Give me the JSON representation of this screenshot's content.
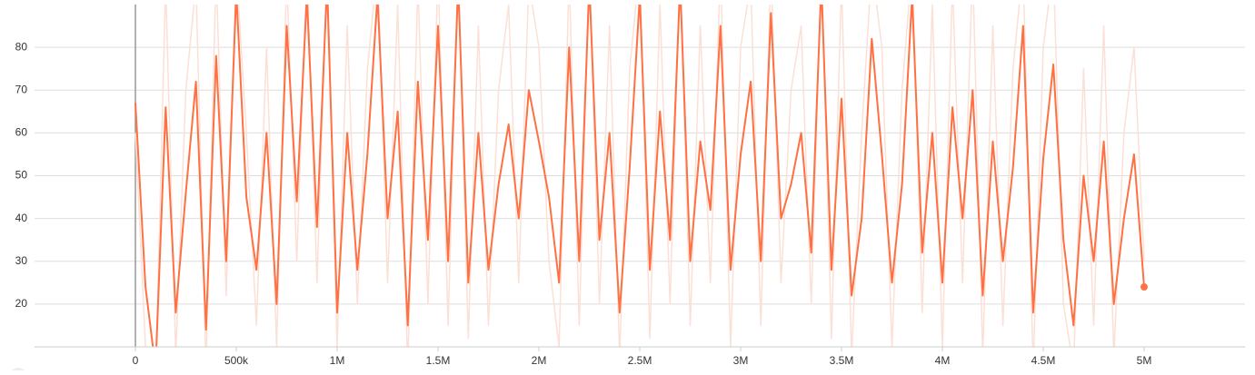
{
  "chart_data": {
    "type": "line",
    "x": [
      0,
      50000,
      100000,
      150000,
      200000,
      250000,
      300000,
      350000,
      400000,
      450000,
      500000,
      550000,
      600000,
      650000,
      700000,
      750000,
      800000,
      850000,
      900000,
      950000,
      1000000,
      1050000,
      1100000,
      1150000,
      1200000,
      1250000,
      1300000,
      1350000,
      1400000,
      1450000,
      1500000,
      1550000,
      1600000,
      1650000,
      1700000,
      1750000,
      1800000,
      1850000,
      1900000,
      1950000,
      2000000,
      2050000,
      2100000,
      2150000,
      2200000,
      2250000,
      2300000,
      2350000,
      2400000,
      2450000,
      2500000,
      2550000,
      2600000,
      2650000,
      2700000,
      2750000,
      2800000,
      2850000,
      2900000,
      2950000,
      3000000,
      3050000,
      3100000,
      3150000,
      3200000,
      3250000,
      3300000,
      3350000,
      3400000,
      3450000,
      3500000,
      3550000,
      3600000,
      3650000,
      3700000,
      3750000,
      3800000,
      3850000,
      3900000,
      3950000,
      4000000,
      4050000,
      4100000,
      4150000,
      4200000,
      4250000,
      4300000,
      4350000,
      4400000,
      4450000,
      4500000,
      4550000,
      4600000,
      4650000,
      4700000,
      4750000,
      4800000,
      4850000,
      4900000,
      4950000,
      5000000
    ],
    "series": [
      {
        "color": "#fbe0d6",
        "values": [
          60,
          10,
          2,
          95,
          8,
          70,
          95,
          5,
          98,
          22,
          99,
          60,
          15,
          80,
          10,
          97,
          30,
          99,
          25,
          99,
          10,
          85,
          20,
          75,
          99,
          25,
          90,
          5,
          95,
          20,
          98,
          15,
          99,
          12,
          85,
          15,
          70,
          90,
          25,
          95,
          80,
          30,
          10,
          97,
          15,
          99,
          20,
          85,
          8,
          75,
          99,
          12,
          90,
          20,
          99,
          15,
          85,
          25,
          99,
          10,
          80,
          95,
          15,
          99,
          25,
          70,
          85,
          20,
          99,
          12,
          95,
          8,
          60,
          99,
          80,
          10,
          70,
          99,
          18,
          90,
          10,
          95,
          25,
          99,
          8,
          85,
          15,
          75,
          99,
          5,
          80,
          99,
          20,
          5,
          75,
          15,
          85,
          8,
          60,
          80,
          30
        ]
      },
      {
        "color": "#ff7043",
        "values": [
          67,
          24,
          5,
          66,
          18,
          46,
          72,
          14,
          78,
          30,
          93,
          45,
          28,
          60,
          20,
          85,
          44,
          92,
          38,
          95,
          18,
          60,
          28,
          55,
          92,
          40,
          65,
          15,
          72,
          35,
          85,
          30,
          95,
          25,
          60,
          28,
          48,
          62,
          40,
          70,
          58,
          45,
          25,
          80,
          30,
          95,
          35,
          60,
          18,
          52,
          92,
          28,
          65,
          35,
          95,
          30,
          58,
          42,
          85,
          28,
          55,
          72,
          30,
          88,
          40,
          48,
          60,
          32,
          95,
          28,
          68,
          22,
          40,
          82,
          55,
          25,
          48,
          92,
          32,
          60,
          25,
          66,
          40,
          70,
          22,
          58,
          30,
          52,
          85,
          18,
          54,
          76,
          35,
          15,
          50,
          30,
          58,
          20,
          40,
          55,
          24
        ]
      }
    ],
    "xlim": [
      -500000,
      5500000
    ],
    "ylim": [
      10,
      90
    ],
    "xticks": [
      0,
      {
        "value": 500000,
        "label": "500k"
      },
      {
        "value": 1000000,
        "label": "1M"
      },
      {
        "value": 1500000,
        "label": "1.5M"
      },
      {
        "value": 2000000,
        "label": "2M"
      },
      {
        "value": 2500000,
        "label": "2.5M"
      },
      {
        "value": 3000000,
        "label": "3M"
      },
      {
        "value": 3500000,
        "label": "3.5M"
      },
      {
        "value": 4000000,
        "label": "4M"
      },
      {
        "value": 4500000,
        "label": "4.5M"
      },
      {
        "value": 5000000,
        "label": "5M"
      }
    ],
    "yticks": [
      20,
      30,
      40,
      50,
      60,
      70,
      80
    ],
    "grid": true
  }
}
